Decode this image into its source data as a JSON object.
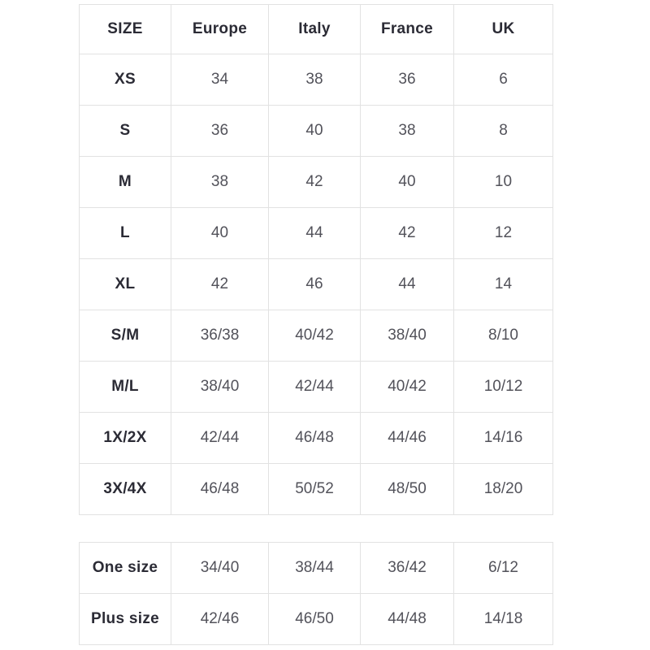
{
  "chart_data": [
    {
      "type": "table",
      "title": "",
      "columns": [
        "SIZE",
        "Europe",
        "Italy",
        "France",
        "UK"
      ],
      "rows": [
        [
          "XS",
          "34",
          "38",
          "36",
          "6"
        ],
        [
          "S",
          "36",
          "40",
          "38",
          "8"
        ],
        [
          "M",
          "38",
          "42",
          "40",
          "10"
        ],
        [
          "L",
          "40",
          "44",
          "42",
          "12"
        ],
        [
          "XL",
          "42",
          "46",
          "44",
          "14"
        ],
        [
          "S/M",
          "36/38",
          "40/42",
          "38/40",
          "8/10"
        ],
        [
          "M/L",
          "38/40",
          "42/44",
          "40/42",
          "10/12"
        ],
        [
          "1X/2X",
          "42/44",
          "46/48",
          "44/46",
          "14/16"
        ],
        [
          "3X/4X",
          "46/48",
          "50/52",
          "48/50",
          "18/20"
        ]
      ]
    },
    {
      "type": "table",
      "title": "",
      "rows": [
        [
          "One size",
          "34/40",
          "38/44",
          "36/42",
          "6/12"
        ],
        [
          "Plus size",
          "42/46",
          "46/50",
          "44/48",
          "14/18"
        ]
      ]
    }
  ],
  "colors": {
    "header_text": "#2b2b35",
    "cell_text": "#52525a",
    "border": "#e2e2e2",
    "background": "#ffffff"
  }
}
